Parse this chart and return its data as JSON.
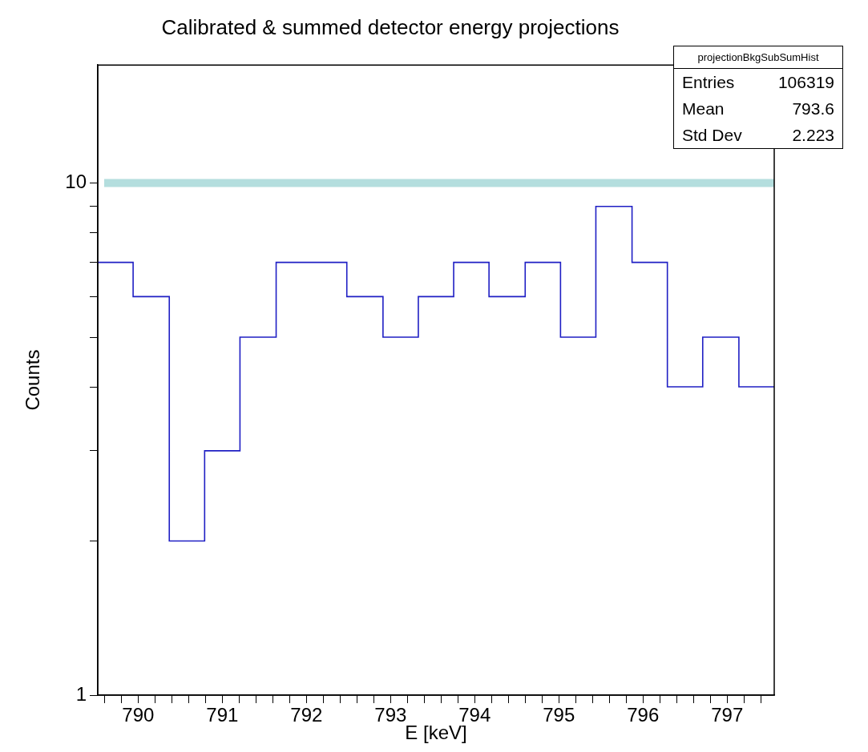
{
  "chart_data": {
    "type": "histogram",
    "title": "Calibrated & summed detector energy projections",
    "xlabel": "E [keV]",
    "ylabel": "Counts",
    "bins": [
      789.52,
      789.94,
      790.37,
      790.79,
      791.21,
      791.64,
      792.06,
      792.48,
      792.91,
      793.33,
      793.75,
      794.17,
      794.6,
      795.02,
      795.44,
      795.87,
      796.29,
      796.71,
      797.14,
      797.56
    ],
    "values": [
      7,
      6,
      2,
      3,
      5,
      7,
      7,
      6,
      5,
      6,
      7,
      6,
      7,
      5,
      9,
      7,
      4,
      5,
      4
    ],
    "color": "#1f1fc4",
    "xlim": [
      789.52,
      797.56
    ],
    "xticks": [
      {
        "value": 789.6,
        "label": null
      },
      {
        "value": 789.8,
        "label": null
      },
      790,
      {
        "value": 790.2,
        "label": null
      },
      {
        "value": 790.4,
        "label": null
      },
      {
        "value": 790.6,
        "label": null
      },
      {
        "value": 790.8,
        "label": null
      },
      791,
      {
        "value": 791.2,
        "label": null
      },
      {
        "value": 791.4,
        "label": null
      },
      {
        "value": 791.6,
        "label": null
      },
      {
        "value": 791.8,
        "label": null
      },
      792,
      {
        "value": 792.2,
        "label": null
      },
      {
        "value": 792.4,
        "label": null
      },
      {
        "value": 792.6,
        "label": null
      },
      {
        "value": 792.8,
        "label": null
      },
      793,
      {
        "value": 793.2,
        "label": null
      },
      {
        "value": 793.4,
        "label": null
      },
      {
        "value": 793.6,
        "label": null
      },
      {
        "value": 793.8,
        "label": null
      },
      794,
      {
        "value": 794.2,
        "label": null
      },
      {
        "value": 794.4,
        "label": null
      },
      {
        "value": 794.6,
        "label": null
      },
      {
        "value": 794.8,
        "label": null
      },
      795,
      {
        "value": 795.2,
        "label": null
      },
      {
        "value": 795.4,
        "label": null
      },
      {
        "value": 795.6,
        "label": null
      },
      {
        "value": 795.8,
        "label": null
      },
      796,
      {
        "value": 796.2,
        "label": null
      },
      {
        "value": 796.4,
        "label": null
      },
      {
        "value": 796.6,
        "label": null
      },
      {
        "value": 796.8,
        "label": null
      },
      797,
      {
        "value": 797.2,
        "label": null
      },
      {
        "value": 797.4,
        "label": null
      }
    ],
    "ylim": [
      1,
      17
    ],
    "yticks": [
      1,
      {
        "value": 2,
        "label": null
      },
      {
        "value": 3,
        "label": null
      },
      {
        "value": 4,
        "label": null
      },
      {
        "value": 5,
        "label": null
      },
      {
        "value": 6,
        "label": null
      },
      {
        "value": 7,
        "label": null
      },
      {
        "value": 8,
        "label": null
      },
      {
        "value": 9,
        "label": null
      },
      10
    ],
    "log": "y",
    "grid": false,
    "legend": false,
    "ref_lines": [
      {
        "axis": "y",
        "value": 10,
        "color": "#b4dede"
      }
    ],
    "annotations": [
      "projectionBkgSubSumHist",
      "Entries",
      "106319",
      "Mean",
      "793.6",
      "Std Dev",
      "2.223"
    ]
  }
}
